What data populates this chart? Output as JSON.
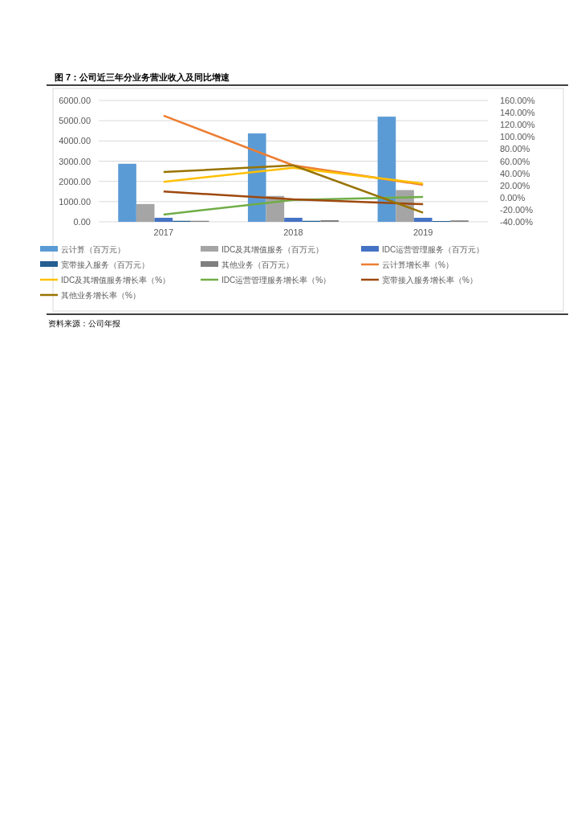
{
  "chart_data": {
    "type": "bar",
    "title": "图 7：公司近三年分业务营业收入及同比增速",
    "categories": [
      "2017",
      "2018",
      "2019"
    ],
    "series": [
      {
        "name": "云计算（百万元）",
        "color": "#5b9bd5",
        "values": [
          2870,
          4370,
          5200
        ]
      },
      {
        "name": "IDC及其增值服务（百万元）",
        "color": "#a5a5a5",
        "values": [
          880,
          1280,
          1570
        ]
      },
      {
        "name": "IDC运营管理服务（百万元）",
        "color": "#4472c4",
        "values": [
          200,
          200,
          200
        ]
      },
      {
        "name": "宽带接入服务（百万元）",
        "color": "#255e91",
        "values": [
          50,
          50,
          40
        ]
      },
      {
        "name": "其他业务（百万元）",
        "color": "#7f7f7f",
        "values": [
          50,
          80,
          70
        ]
      },
      {
        "name": "云计算增长率（%）",
        "type": "line",
        "axis": "y2",
        "color": "#ed7d31",
        "values": [
          135,
          53,
          21
        ]
      },
      {
        "name": "IDC及其增值服务增长率（%）",
        "type": "line",
        "axis": "y2",
        "color": "#ffc000",
        "values": [
          26,
          49,
          23
        ]
      },
      {
        "name": "IDC运营管理服务增长率（%）",
        "type": "line",
        "axis": "y2",
        "color": "#70ad47",
        "values": [
          -28,
          -4,
          1
        ]
      },
      {
        "name": "宽带接入服务增长率（%）",
        "type": "line",
        "axis": "y2",
        "color": "#9e480e",
        "values": [
          10,
          -3,
          -11
        ]
      },
      {
        "name": "其他业务增长率（%）",
        "type": "line",
        "axis": "y2",
        "color": "#997300",
        "values": [
          42,
          53,
          -25
        ]
      }
    ],
    "ylim": [
      0,
      6000
    ],
    "yticks": [
      {
        "value": 0,
        "label": "0.00"
      },
      {
        "value": 1000,
        "label": "1000.00"
      },
      {
        "value": 2000,
        "label": "2000.00"
      },
      {
        "value": 3000,
        "label": "3000.00"
      },
      {
        "value": 4000,
        "label": "4000.00"
      },
      {
        "value": 5000,
        "label": "5000.00"
      },
      {
        "value": 6000,
        "label": "6000.00"
      }
    ],
    "y2lim": [
      -40,
      160
    ],
    "y2ticks": [
      {
        "value": -40,
        "label": "-40.00%"
      },
      {
        "value": -20,
        "label": "-20.00%"
      },
      {
        "value": 0,
        "label": "0.00%"
      },
      {
        "value": 20,
        "label": "20.00%"
      },
      {
        "value": 40,
        "label": "40.00%"
      },
      {
        "value": 60,
        "label": "60.00%"
      },
      {
        "value": 80,
        "label": "80.00%"
      },
      {
        "value": 100,
        "label": "100.00%"
      },
      {
        "value": 120,
        "label": "120.00%"
      },
      {
        "value": 140,
        "label": "140.00%"
      },
      {
        "value": 160,
        "label": "160.00%"
      }
    ],
    "grid": "y",
    "legend": "bottom",
    "line_style": "solid",
    "marker": "none",
    "annotations": [
      "资料来源：公司年报"
    ]
  }
}
